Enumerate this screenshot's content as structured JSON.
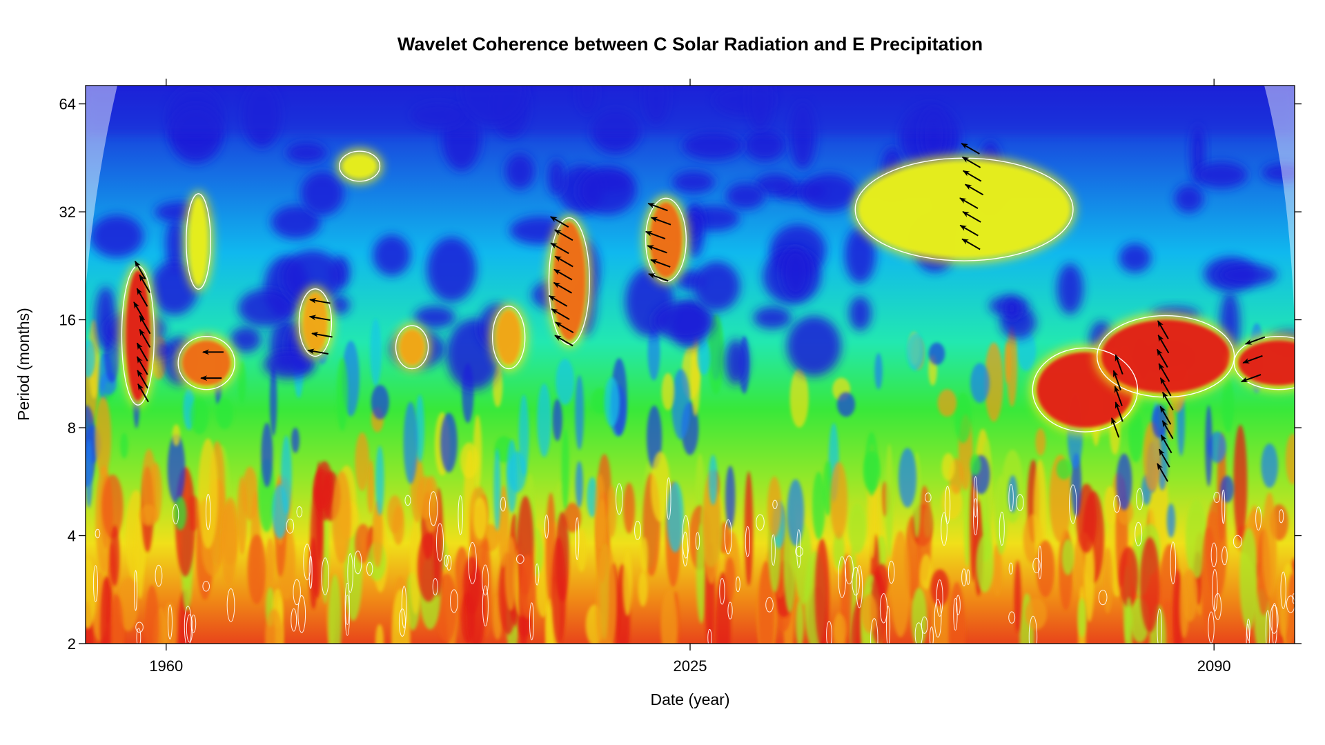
{
  "chart_data": {
    "type": "heatmap",
    "title": "Wavelet Coherence between C Solar Radiation and E Precipitation",
    "xlabel": "Date (year)",
    "ylabel": "Period (months)",
    "x_ticks": [
      {
        "value": 1960,
        "label": "1960"
      },
      {
        "value": 2025,
        "label": "2025"
      },
      {
        "value": 2090,
        "label": "2090"
      }
    ],
    "y_ticks": [
      {
        "value": 2,
        "label": "2"
      },
      {
        "value": 4,
        "label": "4"
      },
      {
        "value": 8,
        "label": "8"
      },
      {
        "value": 16,
        "label": "16"
      },
      {
        "value": 32,
        "label": "32"
      },
      {
        "value": 64,
        "label": "64"
      }
    ],
    "xlim": [
      1950,
      2100
    ],
    "ylim": [
      2,
      72
    ],
    "y_scale": "log2",
    "grid": false,
    "legend": "none",
    "colors": {
      "low": "#1b1bd8",
      "mid_low": "#12d6e8",
      "mid": "#2be83a",
      "mid_high": "#f2ea15",
      "high": "#ef7d14",
      "max": "#e21b12",
      "significance_contour": "#ffffff",
      "cone_of_influence": "#ffffff",
      "phase_arrow": "#000000"
    },
    "high_coherence_regions": [
      {
        "x": [
          1955,
          1958
        ],
        "period": [
          9.5,
          22
        ],
        "level": 0.95
      },
      {
        "x": [
          1962,
          1968
        ],
        "period": [
          10.5,
          14
        ],
        "level": 0.9
      },
      {
        "x": [
          1963,
          1965
        ],
        "period": [
          20,
          35
        ],
        "level": 0.7
      },
      {
        "x": [
          1977,
          1980
        ],
        "period": [
          13,
          19
        ],
        "level": 0.85
      },
      {
        "x": [
          1982,
          1986
        ],
        "period": [
          40,
          46
        ],
        "level": 0.7
      },
      {
        "x": [
          1989,
          1992
        ],
        "period": [
          12,
          15
        ],
        "level": 0.85
      },
      {
        "x": [
          2001,
          2004
        ],
        "period": [
          12,
          17
        ],
        "level": 0.85
      },
      {
        "x": [
          2008,
          2012
        ],
        "period": [
          14,
          30
        ],
        "level": 0.9
      },
      {
        "x": [
          2020,
          2024
        ],
        "period": [
          21,
          34
        ],
        "level": 0.9
      },
      {
        "x": [
          2046,
          2072
        ],
        "period": [
          24,
          44
        ],
        "level": 0.75
      },
      {
        "x": [
          2068,
          2080
        ],
        "period": [
          8,
          13
        ],
        "level": 1.0
      },
      {
        "x": [
          2076,
          2092
        ],
        "period": [
          10,
          16
        ],
        "level": 1.0
      },
      {
        "x": [
          2093,
          2103
        ],
        "period": [
          10.5,
          14
        ],
        "level": 1.0
      }
    ],
    "phase_arrow_clusters": [
      {
        "x": 1957,
        "period": [
          10,
          22
        ],
        "direction_deg": 120
      },
      {
        "x": 1966,
        "period": [
          11,
          13
        ],
        "direction_deg": 180
      },
      {
        "x": 1979,
        "period": [
          13,
          18
        ],
        "direction_deg": 170
      },
      {
        "x": 2009,
        "period": [
          14,
          30
        ],
        "direction_deg": 150
      },
      {
        "x": 2021,
        "period": [
          21,
          33
        ],
        "direction_deg": 160
      },
      {
        "x": 2060,
        "period": [
          26,
          48
        ],
        "direction_deg": 150
      },
      {
        "x": 2078,
        "period": [
          8,
          12
        ],
        "direction_deg": 110
      },
      {
        "x": 2084,
        "period": [
          6,
          15
        ],
        "direction_deg": 120
      },
      {
        "x": 2095,
        "period": [
          11,
          14
        ],
        "direction_deg": 200
      }
    ]
  }
}
